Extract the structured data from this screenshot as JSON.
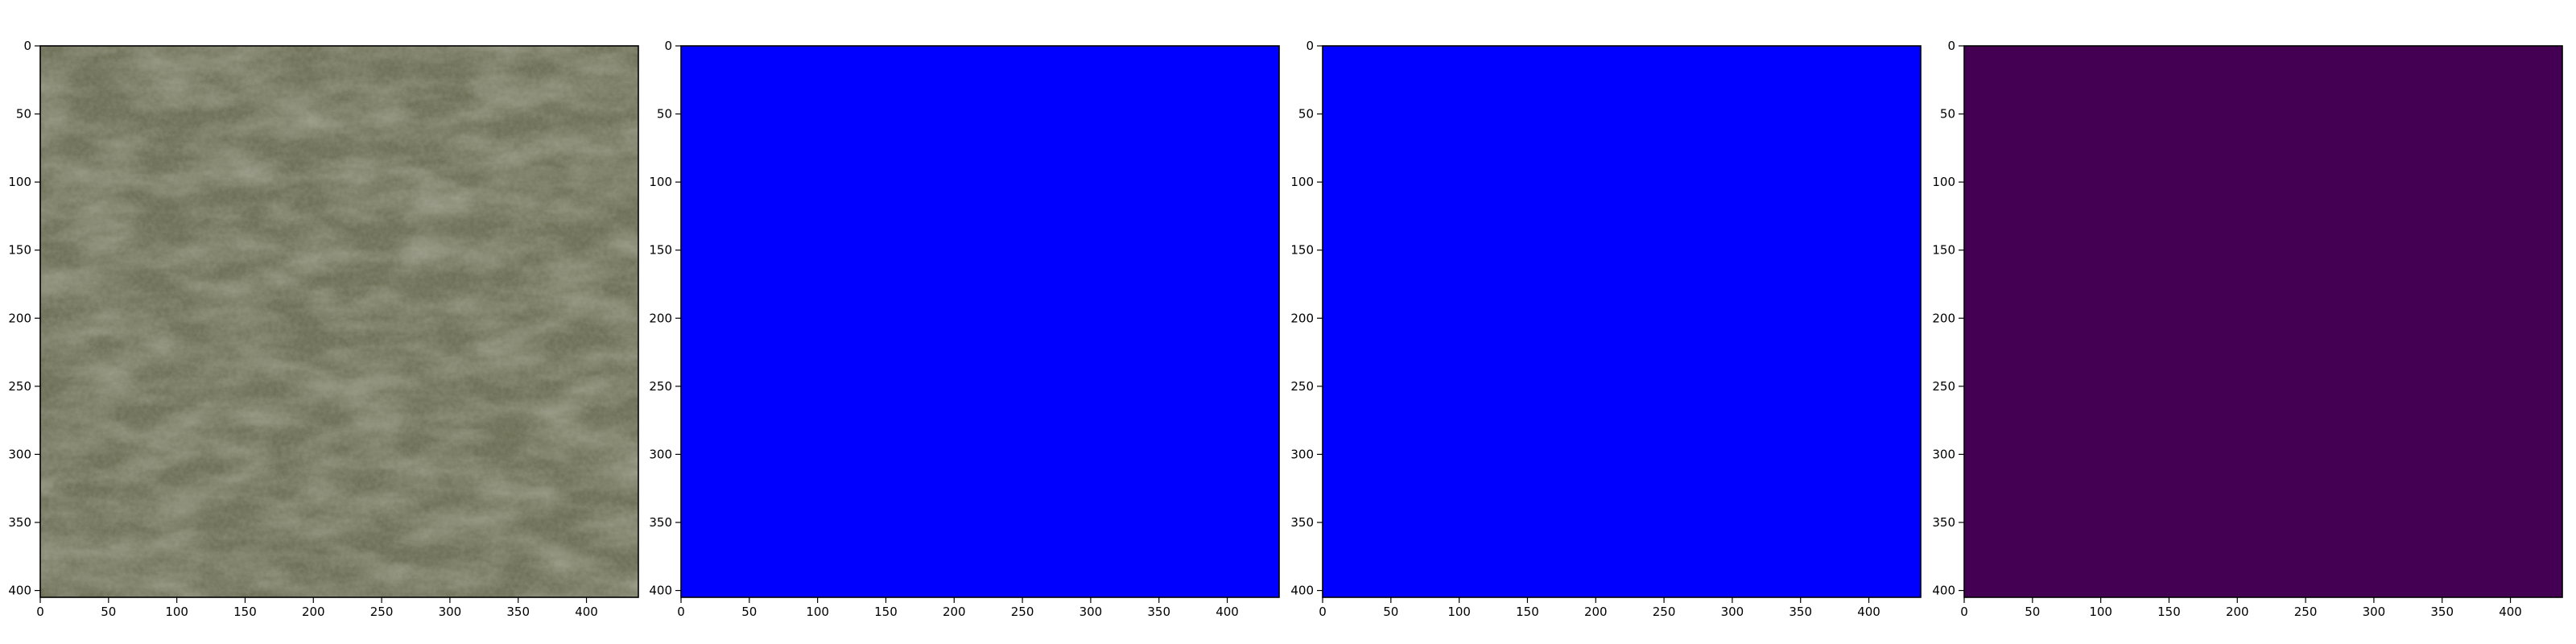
{
  "chart_data": [
    {
      "type": "heatmap",
      "panel": "aerial-image",
      "content": "aerial photograph of grassland / terrain",
      "fill_color": "#6f7159",
      "x_ticks": [
        0,
        50,
        100,
        150,
        200,
        250,
        300,
        350,
        400
      ],
      "y_ticks": [
        0,
        50,
        100,
        150,
        200,
        250,
        300,
        350,
        400
      ],
      "xlim": [
        0,
        438
      ],
      "ylim": [
        405,
        0
      ],
      "grid": false
    },
    {
      "type": "heatmap",
      "panel": "mask-1",
      "content": "uniform mask",
      "fill_color": "#0000ff",
      "x_ticks": [
        0,
        50,
        100,
        150,
        200,
        250,
        300,
        350,
        400
      ],
      "y_ticks": [
        0,
        50,
        100,
        150,
        200,
        250,
        300,
        350,
        400
      ],
      "xlim": [
        0,
        438
      ],
      "ylim": [
        405,
        0
      ],
      "grid": false
    },
    {
      "type": "heatmap",
      "panel": "mask-2",
      "content": "uniform mask",
      "fill_color": "#0000ff",
      "x_ticks": [
        0,
        50,
        100,
        150,
        200,
        250,
        300,
        350,
        400
      ],
      "y_ticks": [
        0,
        50,
        100,
        150,
        200,
        250,
        300,
        350,
        400
      ],
      "xlim": [
        0,
        438
      ],
      "ylim": [
        405,
        0
      ],
      "grid": false
    },
    {
      "type": "heatmap",
      "panel": "mask-3",
      "content": "uniform mask (viridis minimum)",
      "fill_color": "#440154",
      "x_ticks": [
        0,
        50,
        100,
        150,
        200,
        250,
        300,
        350,
        400
      ],
      "y_ticks": [
        0,
        50,
        100,
        150,
        200,
        250,
        300,
        350,
        400
      ],
      "xlim": [
        0,
        438
      ],
      "ylim": [
        405,
        0
      ],
      "grid": false
    }
  ]
}
